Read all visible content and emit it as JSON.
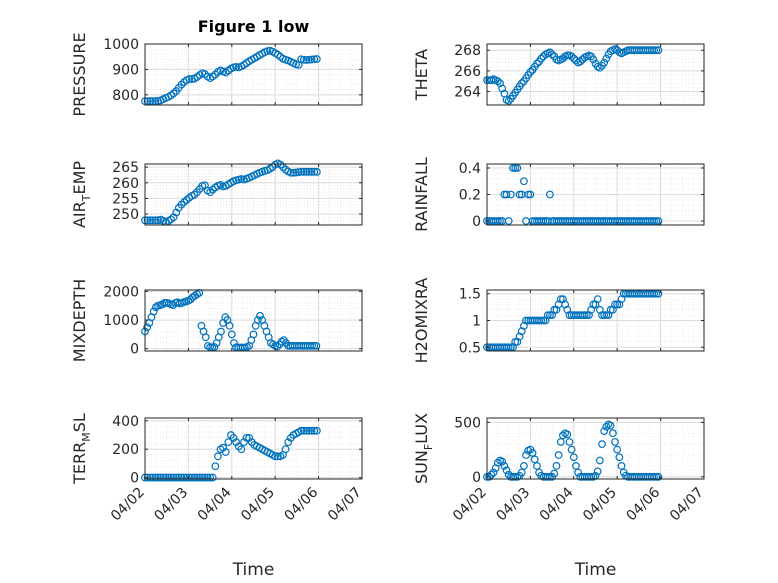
{
  "chart_data": [
    {
      "type": "scatter",
      "ylabel": "PRESSURE",
      "title": "Figure 1 low",
      "xlim": [
        0,
        5
      ],
      "ylim": [
        760,
        1000
      ],
      "yticks": [
        800,
        900,
        1000
      ],
      "xtick_labels": [],
      "xlabel": "",
      "x": [
        0,
        0.06,
        0.12,
        0.18,
        0.24,
        0.3,
        0.36,
        0.42,
        0.48,
        0.54,
        0.6,
        0.66,
        0.72,
        0.78,
        0.84,
        0.9,
        0.96,
        1.02,
        1.08,
        1.14,
        1.2,
        1.26,
        1.32,
        1.38,
        1.44,
        1.5,
        1.56,
        1.62,
        1.68,
        1.74,
        1.8,
        1.86,
        1.92,
        1.98,
        2.04,
        2.1,
        2.16,
        2.22,
        2.28,
        2.34,
        2.4,
        2.46,
        2.52,
        2.58,
        2.64,
        2.7,
        2.76,
        2.82,
        2.88,
        2.94,
        3.0,
        3.06,
        3.12,
        3.18,
        3.24,
        3.3,
        3.36,
        3.42,
        3.48,
        3.54,
        3.6,
        3.66,
        3.72,
        3.78,
        3.84,
        3.9,
        3.96
      ],
      "y": [
        775,
        775,
        775,
        775,
        775,
        776,
        778,
        783,
        788,
        792,
        798,
        806,
        815,
        828,
        840,
        850,
        858,
        862,
        862,
        864,
        870,
        878,
        885,
        882,
        872,
        866,
        872,
        880,
        890,
        896,
        892,
        888,
        895,
        903,
        908,
        910,
        908,
        912,
        918,
        925,
        932,
        938,
        944,
        950,
        956,
        962,
        968,
        972,
        974,
        970,
        964,
        958,
        950,
        942,
        938,
        935,
        930,
        925,
        920,
        918,
        940,
        938,
        937,
        938,
        939,
        940,
        941
      ],
      "color": "#0072BD"
    },
    {
      "type": "scatter",
      "ylabel": "THETA",
      "xlim": [
        0,
        5
      ],
      "ylim": [
        262.7,
        268.6
      ],
      "yticks": [
        264,
        266,
        268
      ],
      "xtick_labels": [],
      "xlabel": "",
      "x": [
        0,
        0.05,
        0.1,
        0.15,
        0.2,
        0.25,
        0.3,
        0.35,
        0.4,
        0.45,
        0.5,
        0.55,
        0.6,
        0.65,
        0.7,
        0.75,
        0.8,
        0.85,
        0.9,
        0.95,
        1.0,
        1.05,
        1.1,
        1.15,
        1.2,
        1.25,
        1.3,
        1.35,
        1.4,
        1.45,
        1.5,
        1.55,
        1.6,
        1.65,
        1.7,
        1.75,
        1.8,
        1.85,
        1.9,
        1.95,
        2.0,
        2.05,
        2.1,
        2.15,
        2.2,
        2.25,
        2.3,
        2.35,
        2.4,
        2.45,
        2.5,
        2.55,
        2.6,
        2.65,
        2.7,
        2.75,
        2.8,
        2.85,
        2.9,
        2.95,
        3.0,
        3.05,
        3.1,
        3.15,
        3.2,
        3.25,
        3.3,
        3.35,
        3.4,
        3.45,
        3.5,
        3.55,
        3.6,
        3.65,
        3.7,
        3.75,
        3.8,
        3.85,
        3.9,
        3.95
      ],
      "y": [
        265.1,
        265.1,
        265.1,
        265.2,
        265.1,
        265.0,
        264.8,
        264.3,
        263.8,
        263.2,
        263.1,
        263.3,
        263.6,
        263.9,
        264.2,
        264.5,
        264.8,
        265.0,
        265.3,
        265.6,
        265.9,
        266.1,
        266.4,
        266.7,
        266.9,
        267.2,
        267.4,
        267.6,
        267.7,
        267.8,
        267.6,
        267.4,
        267.1,
        267.0,
        267.1,
        267.2,
        267.4,
        267.5,
        267.5,
        267.4,
        267.2,
        267.0,
        266.8,
        266.9,
        267.1,
        267.3,
        267.4,
        267.5,
        267.4,
        267.1,
        266.7,
        266.4,
        266.3,
        266.5,
        266.8,
        267.2,
        267.6,
        267.9,
        268.0,
        268.1,
        268.0,
        267.8,
        267.7,
        267.8,
        267.9,
        268.0,
        268.0,
        268.0,
        268.0,
        268.0,
        268.0,
        268.0,
        268.0,
        268.0,
        268.0,
        268.0,
        268.0,
        268.0,
        268.0,
        268.0
      ],
      "color": "#0072BD"
    },
    {
      "type": "scatter",
      "ylabel": "AIR_TEMP",
      "ylabel_parts": [
        "AIR",
        "T",
        "EMP"
      ],
      "xlim": [
        0,
        5
      ],
      "ylim": [
        246.5,
        266
      ],
      "yticks": [
        250,
        255,
        260,
        265
      ],
      "xtick_labels": [],
      "xlabel": "",
      "x": [
        0,
        0.06,
        0.12,
        0.18,
        0.24,
        0.3,
        0.36,
        0.42,
        0.48,
        0.54,
        0.6,
        0.66,
        0.72,
        0.78,
        0.84,
        0.9,
        0.96,
        1.02,
        1.08,
        1.14,
        1.2,
        1.26,
        1.32,
        1.38,
        1.44,
        1.5,
        1.56,
        1.62,
        1.68,
        1.74,
        1.8,
        1.86,
        1.92,
        1.98,
        2.04,
        2.1,
        2.16,
        2.22,
        2.28,
        2.34,
        2.4,
        2.46,
        2.52,
        2.58,
        2.64,
        2.7,
        2.76,
        2.82,
        2.88,
        2.94,
        3.0,
        3.06,
        3.12,
        3.18,
        3.24,
        3.3,
        3.36,
        3.42,
        3.48,
        3.54,
        3.6,
        3.66,
        3.72,
        3.78,
        3.84,
        3.9,
        3.96
      ],
      "y": [
        248,
        248,
        248,
        248,
        248,
        248,
        248.2,
        247.8,
        247.5,
        247.8,
        248.3,
        249,
        250.5,
        252,
        253,
        253.8,
        254.5,
        255.2,
        255.8,
        256.2,
        257,
        258,
        259,
        259.2,
        257.5,
        257,
        257.8,
        258.5,
        259,
        259.3,
        258.8,
        259,
        259.5,
        260,
        260.5,
        260.8,
        261,
        261.2,
        261,
        261.3,
        261.6,
        262,
        262.4,
        262.8,
        263.2,
        263.5,
        263.8,
        264,
        264.5,
        265,
        265.8,
        266.2,
        265.8,
        265,
        264.2,
        263.6,
        263.2,
        263.2,
        263.3,
        263.4,
        263.5,
        263.5,
        263.5,
        263.5,
        263.5,
        263.5,
        263.5
      ],
      "color": "#0072BD"
    },
    {
      "type": "scatter",
      "ylabel": "RAINFALL",
      "xlim": [
        0,
        5
      ],
      "ylim": [
        -0.03,
        0.43
      ],
      "yticks": [
        0,
        0.2,
        0.4
      ],
      "xtick_labels": [],
      "xlabel": "",
      "x": [
        0,
        0.05,
        0.1,
        0.15,
        0.2,
        0.25,
        0.3,
        0.35,
        0.4,
        0.45,
        0.5,
        0.55,
        0.6,
        0.65,
        0.7,
        0.75,
        0.8,
        0.85,
        0.9,
        0.95,
        1.0,
        1.05,
        1.1,
        1.15,
        1.2,
        1.25,
        1.3,
        1.35,
        1.4,
        1.45,
        1.5,
        1.55,
        1.6,
        1.65,
        1.7,
        1.75,
        1.8,
        1.85,
        1.9,
        1.95,
        2.0,
        2.05,
        2.1,
        2.15,
        2.2,
        2.25,
        2.3,
        2.35,
        2.4,
        2.45,
        2.5,
        2.55,
        2.6,
        2.65,
        2.7,
        2.75,
        2.8,
        2.85,
        2.9,
        2.95,
        3.0,
        3.05,
        3.1,
        3.15,
        3.2,
        3.25,
        3.3,
        3.35,
        3.4,
        3.45,
        3.5,
        3.55,
        3.6,
        3.65,
        3.7,
        3.75,
        3.8,
        3.85,
        3.9,
        3.95
      ],
      "y": [
        0,
        0,
        0,
        0,
        0,
        0,
        0,
        0,
        0.2,
        0.2,
        0,
        0.2,
        0.4,
        0.4,
        0.4,
        0.2,
        0.2,
        0.3,
        0,
        0.2,
        0.2,
        0,
        0,
        0,
        0,
        0,
        0,
        0,
        0,
        0.2,
        0,
        0,
        0,
        0,
        0,
        0,
        0,
        0,
        0,
        0,
        0,
        0,
        0,
        0,
        0,
        0,
        0,
        0,
        0,
        0,
        0,
        0,
        0,
        0,
        0,
        0,
        0,
        0,
        0,
        0,
        0,
        0,
        0,
        0,
        0,
        0,
        0,
        0,
        0,
        0,
        0,
        0,
        0,
        0,
        0,
        0,
        0,
        0,
        0,
        0
      ],
      "color": "#0072BD"
    },
    {
      "type": "scatter",
      "ylabel": "MIXDEPTH",
      "xlim": [
        0,
        5
      ],
      "ylim": [
        -80,
        2050
      ],
      "yticks": [
        0,
        1000,
        2000
      ],
      "xtick_labels": [],
      "xlabel": "",
      "x": [
        0,
        0.05,
        0.1,
        0.15,
        0.2,
        0.25,
        0.3,
        0.35,
        0.4,
        0.45,
        0.5,
        0.55,
        0.6,
        0.65,
        0.7,
        0.75,
        0.8,
        0.85,
        0.9,
        0.95,
        1.0,
        1.05,
        1.1,
        1.15,
        1.2,
        1.25,
        1.3,
        1.35,
        1.4,
        1.45,
        1.5,
        1.55,
        1.6,
        1.65,
        1.7,
        1.75,
        1.8,
        1.85,
        1.9,
        1.95,
        2.0,
        2.05,
        2.1,
        2.15,
        2.2,
        2.25,
        2.3,
        2.35,
        2.4,
        2.45,
        2.5,
        2.55,
        2.6,
        2.65,
        2.7,
        2.75,
        2.8,
        2.85,
        2.9,
        2.95,
        3.0,
        3.05,
        3.1,
        3.15,
        3.2,
        3.25,
        3.3,
        3.35,
        3.4,
        3.45,
        3.5,
        3.55,
        3.6,
        3.65,
        3.7,
        3.75,
        3.8,
        3.85,
        3.9,
        3.95
      ],
      "y": [
        600,
        750,
        900,
        1100,
        1300,
        1450,
        1500,
        1520,
        1550,
        1600,
        1600,
        1580,
        1550,
        1520,
        1600,
        1620,
        1580,
        1600,
        1630,
        1650,
        1680,
        1720,
        1800,
        1850,
        1900,
        1950,
        800,
        600,
        400,
        100,
        50,
        50,
        60,
        200,
        400,
        600,
        900,
        1100,
        1000,
        800,
        500,
        200,
        50,
        40,
        40,
        40,
        40,
        60,
        100,
        300,
        500,
        800,
        1000,
        1150,
        1000,
        800,
        600,
        400,
        200,
        150,
        100,
        80,
        150,
        250,
        300,
        200,
        100,
        100,
        100,
        100,
        100,
        100,
        100,
        100,
        100,
        100,
        100,
        100,
        100,
        100
      ],
      "color": "#0072BD"
    },
    {
      "type": "scatter",
      "ylabel": "H2OMIXRA",
      "xlim": [
        0,
        5
      ],
      "ylim": [
        0.43,
        1.57
      ],
      "yticks": [
        0.5,
        1,
        1.5
      ],
      "xtick_labels": [],
      "xlabel": "",
      "x": [
        0,
        0.05,
        0.1,
        0.15,
        0.2,
        0.25,
        0.3,
        0.35,
        0.4,
        0.45,
        0.5,
        0.55,
        0.6,
        0.65,
        0.7,
        0.75,
        0.8,
        0.85,
        0.9,
        0.95,
        1.0,
        1.05,
        1.1,
        1.15,
        1.2,
        1.25,
        1.3,
        1.35,
        1.4,
        1.45,
        1.5,
        1.55,
        1.6,
        1.65,
        1.7,
        1.75,
        1.8,
        1.85,
        1.9,
        1.95,
        2.0,
        2.05,
        2.1,
        2.15,
        2.2,
        2.25,
        2.3,
        2.35,
        2.4,
        2.45,
        2.5,
        2.55,
        2.6,
        2.65,
        2.7,
        2.75,
        2.8,
        2.85,
        2.9,
        2.95,
        3.0,
        3.05,
        3.1,
        3.15,
        3.2,
        3.25,
        3.3,
        3.35,
        3.4,
        3.45,
        3.5,
        3.55,
        3.6,
        3.65,
        3.7,
        3.75,
        3.8,
        3.85,
        3.9,
        3.95
      ],
      "y": [
        0.5,
        0.5,
        0.5,
        0.5,
        0.5,
        0.5,
        0.5,
        0.5,
        0.5,
        0.5,
        0.5,
        0.5,
        0.5,
        0.6,
        0.6,
        0.7,
        0.8,
        0.9,
        1.0,
        1.0,
        1.0,
        1.0,
        1.0,
        1.0,
        1.0,
        1.0,
        1.0,
        1.0,
        1.1,
        1.1,
        1.1,
        1.2,
        1.2,
        1.3,
        1.4,
        1.4,
        1.3,
        1.2,
        1.1,
        1.1,
        1.1,
        1.1,
        1.1,
        1.1,
        1.1,
        1.1,
        1.1,
        1.1,
        1.2,
        1.3,
        1.3,
        1.4,
        1.2,
        1.1,
        1.1,
        1.1,
        1.1,
        1.2,
        1.2,
        1.3,
        1.3,
        1.3,
        1.4,
        1.5,
        1.5,
        1.5,
        1.5,
        1.5,
        1.5,
        1.5,
        1.5,
        1.5,
        1.5,
        1.5,
        1.5,
        1.5,
        1.5,
        1.5,
        1.5,
        1.5
      ],
      "color": "#0072BD"
    },
    {
      "type": "scatter",
      "ylabel": "TERR_MSL",
      "ylabel_parts": [
        "TERR",
        "M",
        "SL"
      ],
      "xlim": [
        0,
        5
      ],
      "ylim": [
        -10,
        420
      ],
      "yticks": [
        0,
        200,
        400
      ],
      "xtick_labels": [
        "04/02",
        "04/03",
        "04/04",
        "04/05",
        "04/06",
        "04/07"
      ],
      "xlabel": "Time",
      "x": [
        0,
        0.06,
        0.12,
        0.18,
        0.24,
        0.3,
        0.36,
        0.42,
        0.48,
        0.54,
        0.6,
        0.66,
        0.72,
        0.78,
        0.84,
        0.9,
        0.96,
        1.02,
        1.08,
        1.14,
        1.2,
        1.26,
        1.32,
        1.38,
        1.44,
        1.5,
        1.56,
        1.62,
        1.68,
        1.74,
        1.8,
        1.86,
        1.92,
        1.98,
        2.04,
        2.1,
        2.16,
        2.22,
        2.28,
        2.34,
        2.4,
        2.46,
        2.52,
        2.58,
        2.64,
        2.7,
        2.76,
        2.82,
        2.88,
        2.94,
        3.0,
        3.06,
        3.12,
        3.18,
        3.24,
        3.3,
        3.36,
        3.42,
        3.48,
        3.54,
        3.6,
        3.66,
        3.72,
        3.78,
        3.84,
        3.9,
        3.96
      ],
      "y": [
        0,
        0,
        0,
        0,
        0,
        0,
        0,
        0,
        0,
        0,
        0,
        0,
        0,
        0,
        0,
        0,
        0,
        0,
        0,
        0,
        0,
        0,
        0,
        0,
        0,
        0,
        0,
        80,
        150,
        200,
        210,
        180,
        250,
        300,
        280,
        250,
        220,
        200,
        250,
        280,
        280,
        250,
        230,
        220,
        210,
        200,
        190,
        180,
        170,
        160,
        150,
        150,
        150,
        160,
        200,
        250,
        280,
        300,
        310,
        320,
        330,
        330,
        330,
        330,
        330,
        330,
        330
      ],
      "color": "#0072BD"
    },
    {
      "type": "scatter",
      "ylabel": "SUN_FLUX",
      "ylabel_parts": [
        "SUN",
        "F",
        "LUX"
      ],
      "xlim": [
        0,
        5
      ],
      "ylim": [
        -20,
        540
      ],
      "yticks": [
        0,
        500
      ],
      "xtick_labels": [
        "04/02",
        "04/03",
        "04/04",
        "04/05",
        "04/06",
        "04/07"
      ],
      "xlabel": "Time",
      "x": [
        0,
        0.05,
        0.1,
        0.15,
        0.2,
        0.25,
        0.3,
        0.35,
        0.4,
        0.45,
        0.5,
        0.55,
        0.6,
        0.65,
        0.7,
        0.75,
        0.8,
        0.85,
        0.9,
        0.95,
        1.0,
        1.05,
        1.1,
        1.15,
        1.2,
        1.25,
        1.3,
        1.35,
        1.4,
        1.45,
        1.5,
        1.55,
        1.6,
        1.65,
        1.7,
        1.75,
        1.8,
        1.85,
        1.9,
        1.95,
        2.0,
        2.05,
        2.1,
        2.15,
        2.2,
        2.25,
        2.3,
        2.35,
        2.4,
        2.45,
        2.5,
        2.55,
        2.6,
        2.65,
        2.7,
        2.75,
        2.8,
        2.85,
        2.9,
        2.95,
        3.0,
        3.05,
        3.1,
        3.15,
        3.2,
        3.25,
        3.3,
        3.35,
        3.4,
        3.45,
        3.5,
        3.55,
        3.6,
        3.65,
        3.7,
        3.75,
        3.8,
        3.85,
        3.9,
        3.95
      ],
      "y": [
        0,
        0,
        20,
        40,
        80,
        130,
        150,
        140,
        100,
        60,
        20,
        0,
        0,
        0,
        0,
        10,
        40,
        100,
        200,
        240,
        250,
        220,
        160,
        100,
        40,
        10,
        0,
        0,
        0,
        0,
        0,
        30,
        100,
        200,
        320,
        380,
        400,
        390,
        320,
        250,
        180,
        100,
        40,
        0,
        0,
        0,
        0,
        0,
        0,
        0,
        10,
        50,
        150,
        300,
        420,
        460,
        480,
        470,
        400,
        320,
        250,
        180,
        100,
        40,
        10,
        0,
        0,
        0,
        0,
        0,
        0,
        0,
        0,
        0,
        0,
        0,
        0,
        0,
        0,
        0
      ],
      "color": "#0072BD"
    }
  ]
}
